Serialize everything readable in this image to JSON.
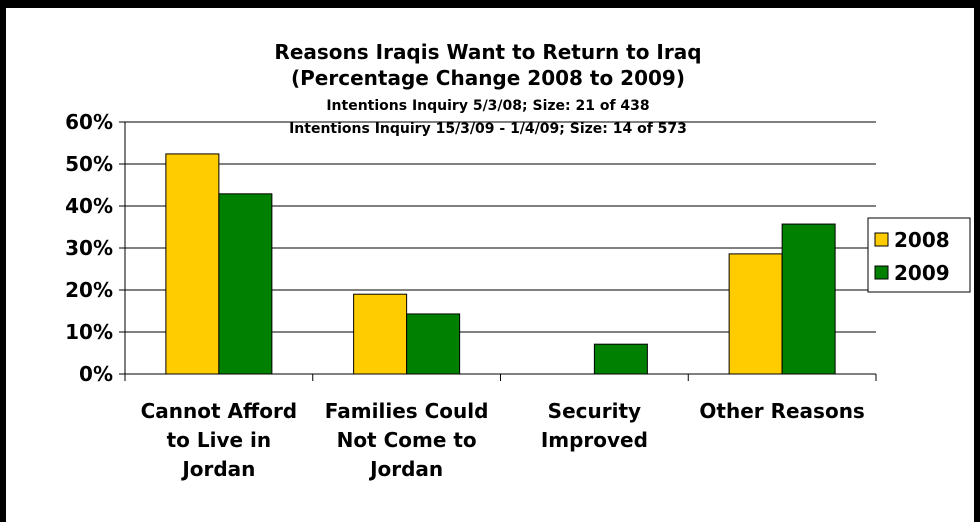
{
  "chart_data": {
    "type": "bar",
    "title": "Reasons Iraqis Want to Return to Iraq",
    "title_line2": "(Percentage Change 2008 to 2009)",
    "subtitle_lines": [
      "Intentions Inquiry 5/3/08; Size: 21 of 438",
      "Intentions Inquiry 15/3/09 - 1/4/09; Size: 14 of 573"
    ],
    "categories": [
      [
        "Cannot Afford",
        "to Live in",
        "Jordan"
      ],
      [
        "Families Could",
        "Not Come to",
        "Jordan"
      ],
      [
        "Security",
        "Improved"
      ],
      [
        "Other Reasons"
      ]
    ],
    "series": [
      {
        "name": "2008",
        "color": "#FFCC00",
        "values": [
          52.4,
          19.0,
          0,
          28.6
        ]
      },
      {
        "name": "2009",
        "color": "#008000",
        "values": [
          42.9,
          14.3,
          7.1,
          35.7
        ]
      }
    ],
    "yticks": [
      "0%",
      "10%",
      "20%",
      "30%",
      "40%",
      "50%",
      "60%"
    ],
    "ylim": [
      0,
      60
    ],
    "xlabel": "",
    "ylabel": "",
    "grid": true,
    "legend_position": "right"
  }
}
